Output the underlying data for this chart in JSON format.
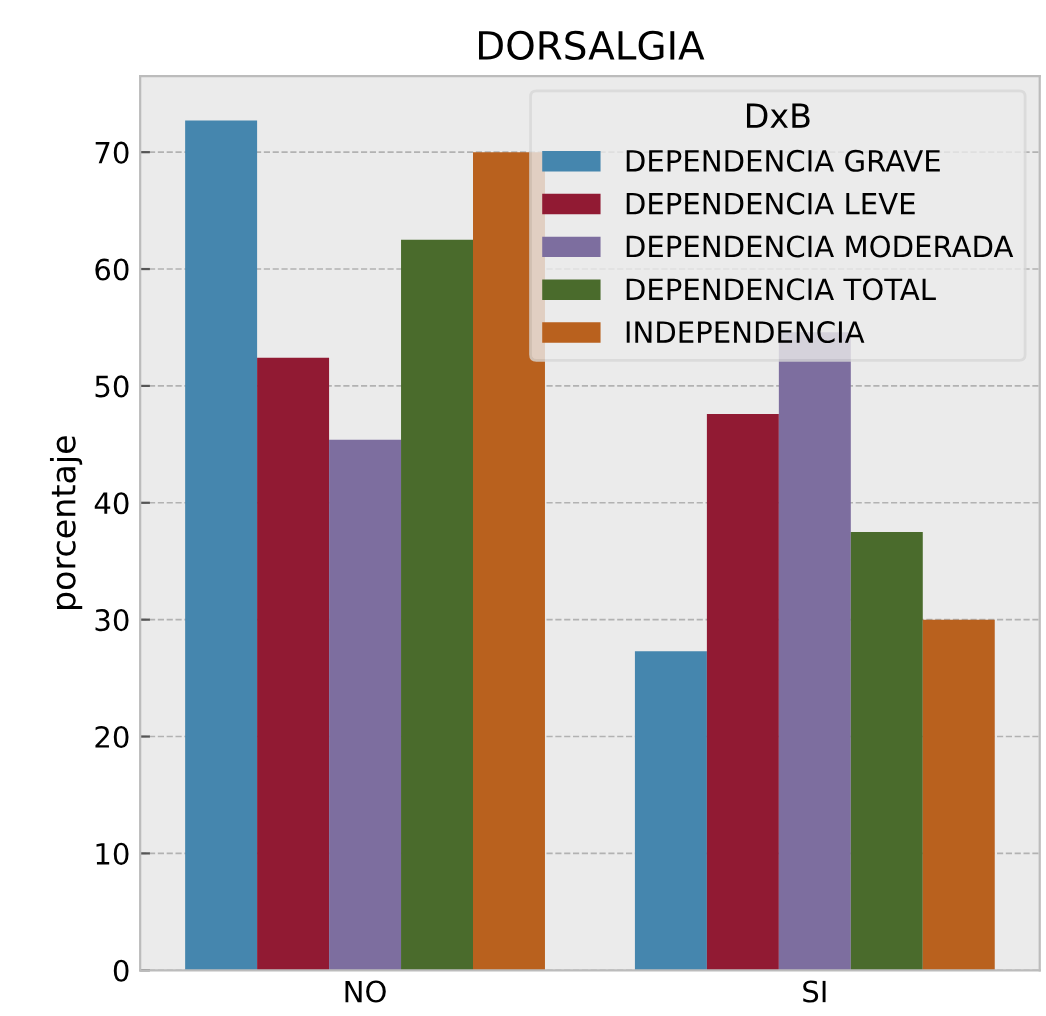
{
  "chart_data": {
    "type": "bar",
    "title": "DORSALGIA",
    "ylabel": "porcentaje",
    "legend_title": "DxB",
    "categories": [
      "NO",
      "SI"
    ],
    "series": [
      {
        "name": "DEPENDENCIA GRAVE",
        "color": "#4586ae",
        "values": [
          72.7,
          27.3
        ]
      },
      {
        "name": "DEPENDENCIA LEVE",
        "color": "#911a33",
        "values": [
          52.4,
          47.6
        ]
      },
      {
        "name": "DEPENDENCIA MODERADA",
        "color": "#7d6e9f",
        "values": [
          45.4,
          54.6
        ]
      },
      {
        "name": "DEPENDENCIA TOTAL",
        "color": "#4a6b2c",
        "values": [
          62.5,
          37.5
        ]
      },
      {
        "name": "INDEPENDENCIA",
        "color": "#b9611e",
        "values": [
          70,
          30
        ]
      }
    ],
    "ylim": [
      0,
      76.5
    ],
    "yticks": [
      0,
      10,
      20,
      30,
      40,
      50,
      60,
      70
    ],
    "grid": "y",
    "legend": "top right"
  }
}
